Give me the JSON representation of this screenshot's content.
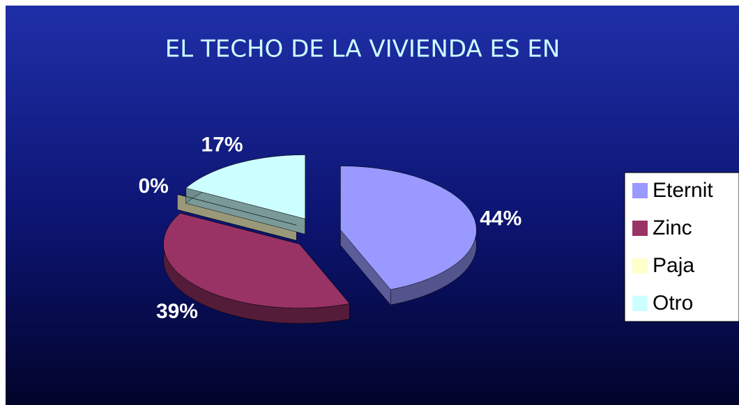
{
  "chart_data": {
    "type": "pie",
    "title": "EL TECHO DE LA VIVIENDA ES EN",
    "categories": [
      "Eternit",
      "Zinc",
      "Paja",
      "Otro"
    ],
    "values": [
      44,
      39,
      0,
      17
    ],
    "value_labels": [
      "44%",
      "39%",
      "0%",
      "17%"
    ],
    "colors": [
      "#9999ff",
      "#993366",
      "#ffffcc",
      "#ccffff"
    ],
    "legend": "right"
  }
}
